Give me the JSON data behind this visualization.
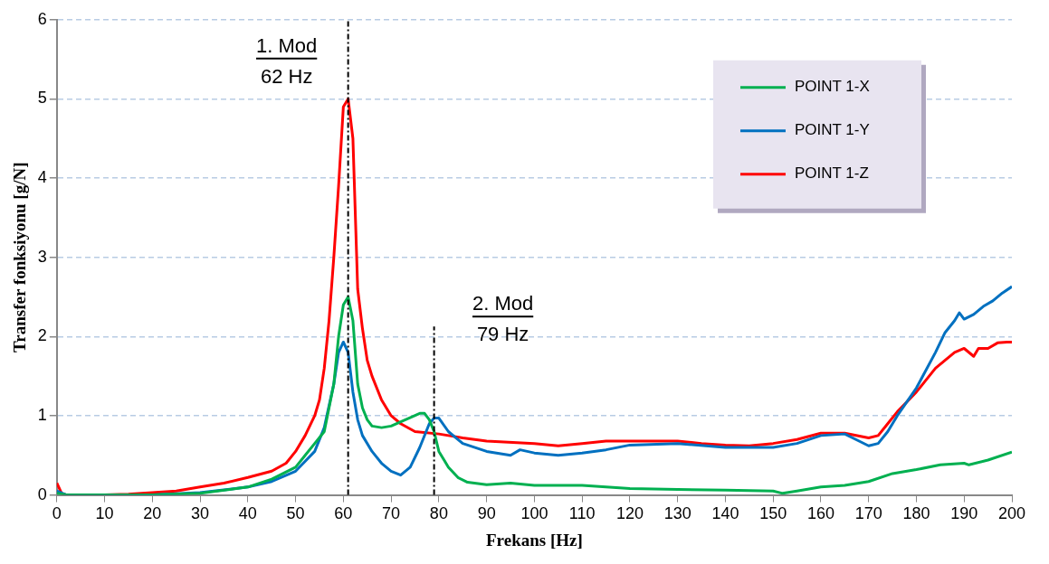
{
  "chart_data": {
    "type": "line",
    "xlabel": "Frekans [Hz]",
    "ylabel": "Transfer fonksiyonu [g/N]",
    "xlim": [
      0,
      200
    ],
    "xticks": [
      0,
      10,
      20,
      30,
      40,
      50,
      60,
      70,
      80,
      90,
      100,
      110,
      120,
      130,
      140,
      150,
      160,
      170,
      180,
      190,
      200
    ],
    "ylim": [
      0,
      6
    ],
    "yticks": [
      0,
      1,
      2,
      3,
      4,
      5,
      6
    ],
    "grid": "y",
    "legend": "top right",
    "marker": "none",
    "line_style": "solid",
    "series": [
      {
        "name": "POINT 1-X",
        "color": "#00b050",
        "x": [
          0,
          2,
          20,
          30,
          40,
          45,
          50,
          52,
          54,
          56,
          58,
          59,
          60,
          61,
          62,
          63,
          64,
          65,
          66,
          68,
          70,
          73,
          76,
          77,
          78,
          79,
          80,
          82,
          84,
          86,
          90,
          95,
          100,
          110,
          115,
          120,
          130,
          140,
          150,
          152,
          155,
          160,
          165,
          170,
          175,
          180,
          185,
          190,
          191,
          195,
          200
        ],
        "values": [
          0.02,
          0,
          0,
          0.02,
          0.1,
          0.2,
          0.35,
          0.5,
          0.65,
          0.8,
          1.4,
          2.0,
          2.4,
          2.5,
          2.2,
          1.4,
          1.1,
          0.95,
          0.87,
          0.85,
          0.87,
          0.95,
          1.03,
          1.03,
          0.95,
          0.8,
          0.55,
          0.35,
          0.22,
          0.16,
          0.13,
          0.15,
          0.12,
          0.12,
          0.1,
          0.08,
          0.07,
          0.06,
          0.05,
          0.02,
          0.05,
          0.1,
          0.12,
          0.17,
          0.27,
          0.32,
          0.38,
          0.4,
          0.38,
          0.44,
          0.54
        ]
      },
      {
        "name": "POINT 1-Y",
        "color": "#0070c0",
        "x": [
          0,
          2,
          20,
          30,
          40,
          45,
          50,
          54,
          56,
          58,
          59,
          60,
          61,
          62,
          63,
          64,
          66,
          68,
          70,
          72,
          74,
          76,
          78,
          79,
          80,
          82,
          85,
          90,
          95,
          97,
          100,
          105,
          110,
          115,
          120,
          130,
          140,
          150,
          155,
          160,
          165,
          168,
          170,
          172,
          174,
          176,
          180,
          184,
          186,
          188,
          189,
          190,
          192,
          194,
          196,
          198,
          200
        ],
        "values": [
          0.05,
          0,
          0,
          0.03,
          0.1,
          0.17,
          0.3,
          0.55,
          0.85,
          1.4,
          1.8,
          1.93,
          1.8,
          1.3,
          0.95,
          0.75,
          0.55,
          0.4,
          0.3,
          0.25,
          0.35,
          0.6,
          0.9,
          0.97,
          0.97,
          0.8,
          0.65,
          0.55,
          0.5,
          0.57,
          0.53,
          0.5,
          0.53,
          0.57,
          0.63,
          0.65,
          0.6,
          0.6,
          0.65,
          0.75,
          0.77,
          0.68,
          0.62,
          0.65,
          0.8,
          1.0,
          1.35,
          1.8,
          2.05,
          2.2,
          2.3,
          2.22,
          2.28,
          2.38,
          2.45,
          2.55,
          2.63
        ]
      },
      {
        "name": "POINT 1-Z",
        "color": "#ff0000",
        "x": [
          0,
          1,
          2,
          10,
          15,
          20,
          25,
          30,
          35,
          40,
          45,
          48,
          50,
          52,
          54,
          55,
          56,
          57,
          58,
          59,
          60,
          61,
          62,
          63,
          64,
          65,
          66,
          68,
          70,
          72,
          75,
          80,
          85,
          90,
          100,
          105,
          110,
          115,
          130,
          135,
          140,
          145,
          150,
          155,
          160,
          165,
          170,
          172,
          174,
          176,
          180,
          184,
          188,
          190,
          192,
          193,
          195,
          197,
          199,
          200
        ],
        "values": [
          0.15,
          0.02,
          0,
          0,
          0.01,
          0.03,
          0.05,
          0.1,
          0.15,
          0.22,
          0.3,
          0.4,
          0.55,
          0.75,
          1.0,
          1.2,
          1.6,
          2.2,
          3.0,
          3.9,
          4.9,
          5.0,
          4.5,
          2.6,
          2.1,
          1.7,
          1.5,
          1.2,
          1.0,
          0.9,
          0.8,
          0.77,
          0.72,
          0.68,
          0.65,
          0.62,
          0.65,
          0.68,
          0.68,
          0.65,
          0.63,
          0.62,
          0.65,
          0.7,
          0.78,
          0.78,
          0.72,
          0.75,
          0.9,
          1.05,
          1.3,
          1.6,
          1.8,
          1.85,
          1.75,
          1.85,
          1.85,
          1.92,
          1.93,
          1.93
        ]
      }
    ],
    "ref_lines": [
      {
        "axis": "x",
        "value": 61,
        "label": "1. Mod",
        "color": "#000000",
        "line_style": "dashdot"
      },
      {
        "axis": "x",
        "value": 79,
        "label": "2. Mod",
        "color": "#000000",
        "line_style": "dashdot"
      }
    ],
    "annotations": [
      "62 Hz",
      "79 Hz"
    ]
  }
}
